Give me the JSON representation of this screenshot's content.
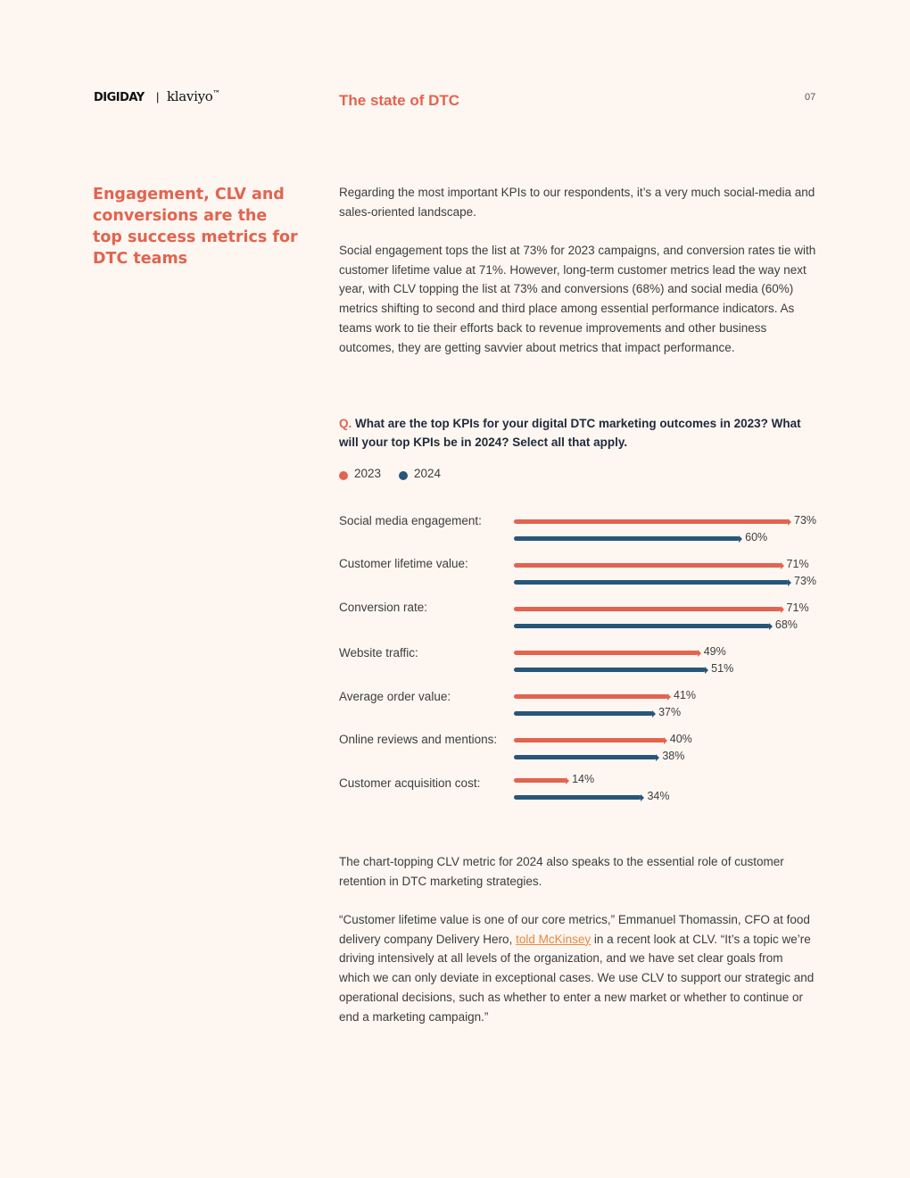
{
  "header": {
    "brand_left": "DIGIDAY",
    "brand_separator": "|",
    "brand_right": "klaviyo",
    "brand_right_mark": "™",
    "section_title": "The state of DTC",
    "page_number": "07"
  },
  "side_heading": "Engagement, CLV and conversions are the top success metrics for DTC teams",
  "intro": {
    "p1": "Regarding the most important KPIs to our respondents, it’s a very much social-media and sales-oriented landscape.",
    "p2": "Social engagement tops the list at 73% for 2023 campaigns, and conversion rates tie with customer lifetime value at 71%. However, long-term customer metrics lead the way next year, with CLV topping the list at 73% and conversions (68%) and social media (60%) metrics shifting to second and third place among essential performance indicators. As teams work to tie their efforts back to revenue improvements and other business outcomes, they are getting savvier about metrics that impact performance."
  },
  "question": {
    "marker": "Q.",
    "text": "What are the top KPIs for your digital DTC marketing outcomes in 2023? What will your top KPIs be in 2024? Select all that apply."
  },
  "colors": {
    "accent": "#e2644f",
    "series_2023": "#e2644f",
    "series_2024": "#27567a",
    "link": "#e8893d"
  },
  "chart_data": {
    "type": "bar",
    "orientation": "horizontal",
    "categories": [
      "Social media engagement:",
      "Customer lifetime value:",
      "Conversion rate:",
      "Website traffic:",
      "Average order value:",
      "Online reviews and mentions:",
      "Customer acquisition cost:"
    ],
    "series": [
      {
        "name": "2023",
        "color": "#e2644f",
        "values": [
          73,
          71,
          71,
          49,
          41,
          40,
          14
        ]
      },
      {
        "name": "2024",
        "color": "#27567a",
        "values": [
          60,
          73,
          68,
          51,
          37,
          38,
          34
        ]
      }
    ],
    "value_suffix": "%",
    "xlim": [
      0,
      73
    ],
    "legend_position": "top-left",
    "grid": false
  },
  "closing": {
    "p1": "The chart-topping CLV metric for 2024 also speaks to the essential role of customer retention in DTC marketing strategies.",
    "p2_before_link": "“Customer lifetime value is one of our core metrics,” Emmanuel Thomassin, CFO at food delivery company Delivery Hero, ",
    "p2_link": "told McKinsey",
    "p2_after_link": " in a recent look at CLV. “It’s a topic we’re driving intensively at all levels of the organization, and we have set clear goals from which we can only deviate in exceptional cases. We use CLV to support our strategic and operational decisions, such as whether to enter a new market or whether to continue or end a marketing campaign.”"
  }
}
